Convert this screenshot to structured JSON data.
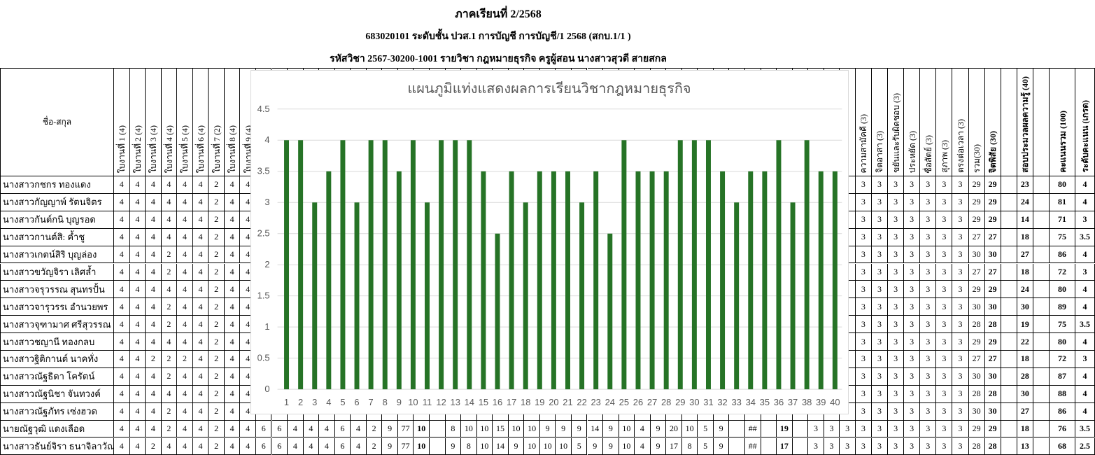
{
  "header": {
    "semester": "ภาคเรียนที่ 2/2568",
    "class_line": "683020101 ระดับชั้น ปวส.1 การบัญชี การบัญชี/1 2568 (สกบ.1/1 )",
    "course_line": "รหัสวิชา 2567-30200-1001    รายวิชา กฎหมายธุรกิจ    ครูผู้สอน นางสาวสุวดี สายสกล"
  },
  "table": {
    "name_header": "ชื่อ-สกุล",
    "left_headers": [
      "ใบงานที่ 1 (4)",
      "ใบงานที่ 2 (4)",
      "ใบงานที่ 3 (4)",
      "ใบงานที่ 4 (4)",
      "ใบงานที่ 5 (4)",
      "ใบงานที่ 6 (4)",
      "ใบงานที่ 7 (2)",
      "ใบงานที่ 8 (4)",
      "ใบงานที่ 9 (4)"
    ],
    "right_headers": [
      "ความสามัคคี (3)",
      "จิตอาสา (3)",
      "ขยันและรับผิดชอบ (3)",
      "ประหยัด (3)",
      "ซื่อสัตย์ (3)",
      "สุภาพ (3)",
      "ตรงต่อเวลา (3)",
      "รวม(30)",
      "จิตพิสัย (30)",
      "",
      "สอบประมวลผลความรู้ (40)",
      "",
      "คะแนนรวม (100)",
      "ระดับคะแนน (เกรด)"
    ],
    "rows": [
      {
        "name": "นางสาวกชกร    ทองแดง",
        "left": [
          "4",
          "4",
          "4",
          "4",
          "4",
          "4",
          "2",
          "4",
          "4"
        ],
        "right": [
          "3",
          "3",
          "3",
          "3",
          "3",
          "3",
          "3",
          "29",
          "29",
          "",
          "23",
          "",
          "80",
          "4"
        ]
      },
      {
        "name": "นางสาวกัญญาพ์ รัตนจิตร",
        "left": [
          "4",
          "4",
          "4",
          "4",
          "4",
          "4",
          "2",
          "4",
          "4"
        ],
        "right": [
          "3",
          "3",
          "3",
          "3",
          "3",
          "3",
          "3",
          "29",
          "29",
          "",
          "24",
          "",
          "81",
          "4"
        ]
      },
      {
        "name": "นางสาวกันต์กนิ บุญรอด",
        "left": [
          "4",
          "4",
          "4",
          "4",
          "4",
          "4",
          "2",
          "4",
          "4"
        ],
        "right": [
          "3",
          "3",
          "3",
          "3",
          "3",
          "3",
          "3",
          "29",
          "29",
          "",
          "14",
          "",
          "71",
          "3"
        ]
      },
      {
        "name": "นางสาวกานต์สิ: ค้ำชู",
        "left": [
          "4",
          "4",
          "4",
          "4",
          "4",
          "4",
          "2",
          "4",
          "4"
        ],
        "right": [
          "3",
          "3",
          "3",
          "3",
          "3",
          "3",
          "3",
          "27",
          "27",
          "",
          "18",
          "",
          "75",
          "3.5"
        ]
      },
      {
        "name": "นางสาวเกตน์สิริ บุญล่อง",
        "left": [
          "4",
          "4",
          "4",
          "2",
          "4",
          "4",
          "2",
          "4",
          "4"
        ],
        "right": [
          "3",
          "3",
          "3",
          "3",
          "3",
          "3",
          "3",
          "30",
          "30",
          "",
          "27",
          "",
          "86",
          "4"
        ]
      },
      {
        "name": "นางสาวขวัญจิรา เลิศล้ำ",
        "left": [
          "4",
          "4",
          "4",
          "2",
          "4",
          "4",
          "2",
          "4",
          "4"
        ],
        "right": [
          "3",
          "3",
          "3",
          "3",
          "3",
          "3",
          "3",
          "27",
          "27",
          "",
          "18",
          "",
          "72",
          "3"
        ]
      },
      {
        "name": "นางสาวจรุวรรณ สุนทรปั้น",
        "left": [
          "4",
          "4",
          "4",
          "4",
          "4",
          "4",
          "2",
          "4",
          "4"
        ],
        "right": [
          "3",
          "3",
          "3",
          "3",
          "3",
          "3",
          "3",
          "29",
          "29",
          "",
          "24",
          "",
          "80",
          "4"
        ]
      },
      {
        "name": "นางสาวจารุวรรเ อำนวยพร",
        "left": [
          "4",
          "4",
          "4",
          "2",
          "4",
          "4",
          "2",
          "4",
          "4"
        ],
        "right": [
          "3",
          "3",
          "3",
          "3",
          "3",
          "3",
          "3",
          "30",
          "30",
          "",
          "30",
          "",
          "89",
          "4"
        ]
      },
      {
        "name": "นางสาวจุฑามาศ ศรีสุวรรณ",
        "left": [
          "4",
          "4",
          "4",
          "2",
          "4",
          "4",
          "2",
          "4",
          "4"
        ],
        "right": [
          "3",
          "3",
          "3",
          "3",
          "3",
          "3",
          "3",
          "28",
          "28",
          "",
          "19",
          "",
          "75",
          "3.5"
        ]
      },
      {
        "name": "นางสาวชญานี    ทองกลบ",
        "left": [
          "4",
          "4",
          "4",
          "4",
          "4",
          "4",
          "2",
          "4",
          "4"
        ],
        "right": [
          "3",
          "3",
          "3",
          "3",
          "3",
          "3",
          "3",
          "29",
          "29",
          "",
          "22",
          "",
          "80",
          "4"
        ]
      },
      {
        "name": "นางสาวฐิติกานต์ นาคทั่ง",
        "left": [
          "4",
          "4",
          "2",
          "2",
          "2",
          "4",
          "2",
          "4",
          "4"
        ],
        "right": [
          "3",
          "3",
          "3",
          "3",
          "3",
          "3",
          "3",
          "27",
          "27",
          "",
          "18",
          "",
          "72",
          "3"
        ]
      },
      {
        "name": "นางสาวณัฐธิดา  โครัตน์",
        "left": [
          "4",
          "4",
          "4",
          "2",
          "4",
          "4",
          "2",
          "4",
          "4"
        ],
        "right": [
          "3",
          "3",
          "3",
          "3",
          "3",
          "3",
          "3",
          "30",
          "30",
          "",
          "28",
          "",
          "87",
          "4"
        ]
      },
      {
        "name": "นางสาวณัฐนิชา จันทวงค์",
        "left": [
          "4",
          "4",
          "4",
          "4",
          "4",
          "4",
          "2",
          "4",
          "4"
        ],
        "right": [
          "3",
          "3",
          "3",
          "3",
          "3",
          "3",
          "3",
          "28",
          "28",
          "",
          "30",
          "",
          "88",
          "4"
        ]
      },
      {
        "name": "นางสาวณัฐภัทร เซ่งฮวด",
        "left": [
          "4",
          "4",
          "4",
          "2",
          "4",
          "4",
          "2",
          "4",
          "4"
        ],
        "right": [
          "3",
          "3",
          "3",
          "3",
          "3",
          "3",
          "3",
          "30",
          "30",
          "",
          "27",
          "",
          "86",
          "4"
        ]
      },
      {
        "name": "นายณัฐวุฒิ       แดงเลือด",
        "left": [
          "4",
          "4",
          "4",
          "2",
          "4",
          "4",
          "2",
          "4",
          "4"
        ],
        "middle": [
          "6",
          "6",
          "4",
          "4",
          "4",
          "6",
          "4",
          "2",
          "9",
          "77",
          "10",
          "",
          "8",
          "10",
          "10",
          "15",
          "10",
          "10",
          "9",
          "9",
          "9",
          "14",
          "9",
          "10",
          "4",
          "9",
          "20",
          "10",
          "5",
          "9",
          "",
          "##",
          "",
          "19",
          "",
          "3",
          "3",
          "3"
        ],
        "right": [
          "3",
          "3",
          "3",
          "3",
          "3",
          "3",
          "3",
          "29",
          "29",
          "",
          "18",
          "",
          "76",
          "3.5"
        ]
      },
      {
        "name": "นางสาวธันย์จิรา ธนาจิลาวัณย์",
        "left": [
          "4",
          "4",
          "2",
          "4",
          "4",
          "4",
          "2",
          "4",
          "4"
        ],
        "middle": [
          "6",
          "6",
          "4",
          "4",
          "4",
          "6",
          "4",
          "2",
          "9",
          "77",
          "10",
          "",
          "9",
          "8",
          "10",
          "14",
          "9",
          "10",
          "10",
          "10",
          "5",
          "9",
          "9",
          "10",
          "4",
          "9",
          "17",
          "8",
          "5",
          "9",
          "",
          "##",
          "",
          "17",
          "",
          "3",
          "3",
          "3"
        ],
        "right": [
          "3",
          "3",
          "3",
          "3",
          "3",
          "3",
          "3",
          "28",
          "28",
          "",
          "13",
          "",
          "68",
          "2.5"
        ]
      }
    ]
  },
  "chart_data": {
    "type": "bar",
    "title": "แผนภูมิแท่งแสดงผลการเรียนวิชากฎหมายธุรกิจ",
    "categories": [
      "1",
      "2",
      "3",
      "4",
      "5",
      "6",
      "7",
      "8",
      "9",
      "10",
      "11",
      "12",
      "13",
      "14",
      "15",
      "16",
      "17",
      "18",
      "19",
      "20",
      "21",
      "22",
      "23",
      "24",
      "25",
      "26",
      "27",
      "28",
      "29",
      "30",
      "31",
      "32",
      "33",
      "34",
      "35",
      "36",
      "37",
      "38",
      "39",
      "40"
    ],
    "values": [
      4,
      4,
      3,
      3.5,
      4,
      3,
      4,
      4,
      3.5,
      4,
      3,
      4,
      4,
      4,
      3.5,
      2.5,
      3.5,
      3,
      3.5,
      3.5,
      3.5,
      3,
      3.5,
      2.5,
      4,
      3.5,
      3.5,
      3.5,
      4,
      4,
      4,
      3.5,
      3,
      3.5,
      3.5,
      4,
      3,
      4,
      3.5,
      3.5
    ],
    "yticks": [
      "0",
      "0.5",
      "1",
      "1.5",
      "2",
      "2.5",
      "3",
      "3.5",
      "4",
      "4.5"
    ],
    "ylim": [
      0,
      4.5
    ],
    "grid": true,
    "legend": "none",
    "bar_color": "#267326",
    "xlabel": "",
    "ylabel": ""
  }
}
